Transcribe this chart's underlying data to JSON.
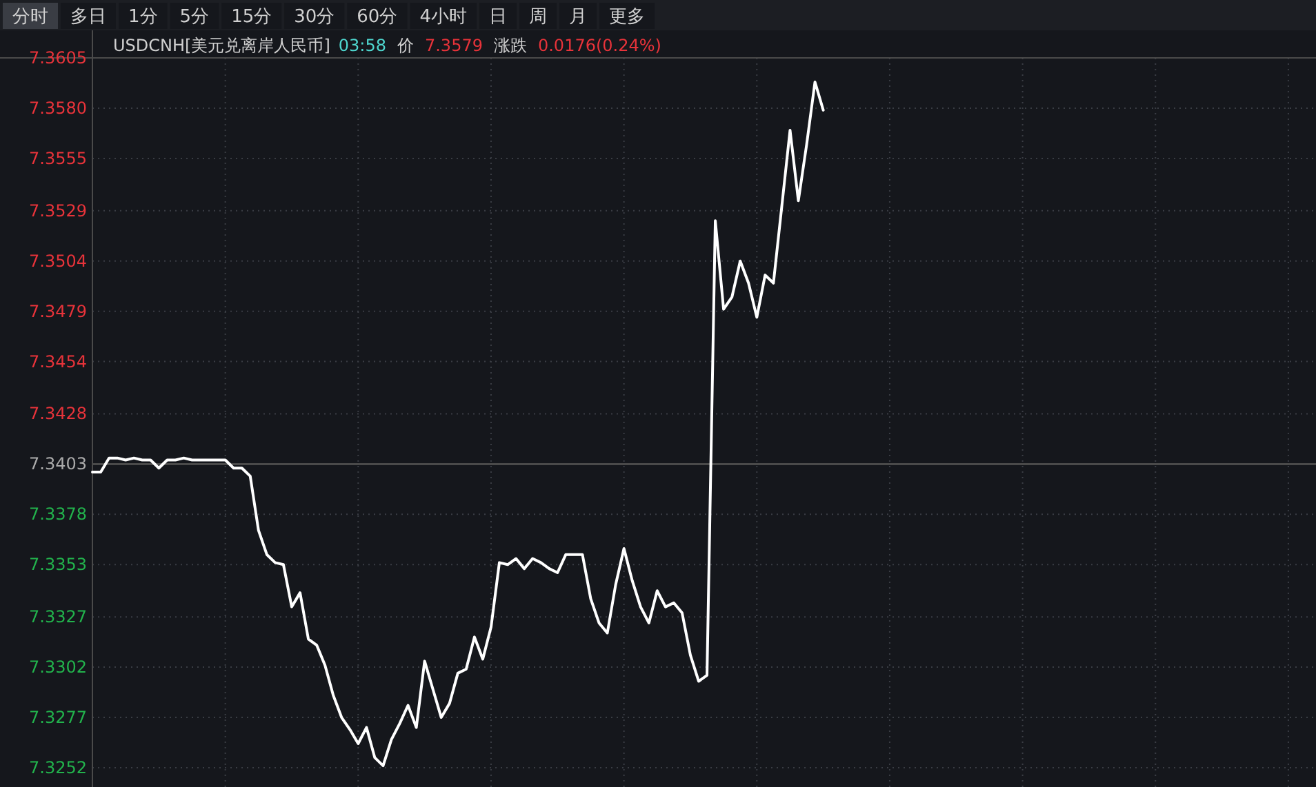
{
  "chart_data": {
    "type": "line",
    "title": "USDCNH[美元兑离岸人民币]",
    "annotations": [
      "03:58",
      "价",
      "7.3579",
      "涨跌",
      "0.0176(0.24%)",
      "分时",
      "多日",
      "1分",
      "5分",
      "15分",
      "30分",
      "60分",
      "4小时",
      "日",
      "周",
      "月",
      "更多"
    ],
    "categories": [
      null,
      null,
      null,
      null,
      null,
      null,
      null,
      null,
      null,
      null,
      null,
      null,
      null,
      null,
      null,
      null,
      null,
      null,
      null,
      null,
      null,
      null,
      null,
      null,
      null,
      null,
      null,
      null,
      null,
      null,
      null,
      null,
      null,
      null,
      null,
      null,
      null,
      null,
      null,
      null,
      null,
      null,
      null,
      null,
      null,
      null,
      null,
      null,
      null,
      null,
      null,
      null,
      null,
      null,
      null,
      null,
      null,
      null,
      null,
      null,
      null,
      null,
      null,
      null,
      null,
      null,
      null,
      null,
      null,
      null,
      null,
      null,
      null,
      null,
      null,
      null,
      null,
      null,
      null,
      null,
      null,
      null,
      null,
      null,
      null,
      null,
      null,
      null,
      null,
      null,
      null,
      null,
      null,
      null,
      null,
      null,
      null,
      null,
      null,
      null,
      null,
      null,
      null,
      null,
      null,
      null,
      null,
      null,
      null,
      null,
      null,
      null,
      null,
      null,
      null,
      null,
      null,
      null,
      null,
      null,
      null,
      null,
      null,
      null,
      null,
      null,
      null,
      null,
      null,
      null,
      null,
      null,
      null,
      null,
      null,
      null,
      null,
      null,
      null,
      null,
      null,
      null,
      null,
      null,
      null,
      null,
      null
    ],
    "series": [
      {
        "color": "#ffffff",
        "values": [
          7.3399,
          7.3399,
          7.3406,
          7.3406,
          7.3405,
          7.3406,
          7.3405,
          7.3405,
          7.3401,
          7.3405,
          7.3405,
          7.3406,
          7.3405,
          7.3405,
          7.3405,
          7.3405,
          7.3405,
          7.3401,
          7.3401,
          7.3397,
          7.337,
          7.3358,
          7.3354,
          7.3353,
          7.3332,
          7.3339,
          7.3316,
          7.3313,
          7.3303,
          7.3288,
          7.3277,
          7.3271,
          7.3264,
          7.3272,
          7.3257,
          7.3253,
          7.3266,
          7.3274,
          7.3283,
          7.3272,
          7.3305,
          7.3291,
          7.3277,
          7.3284,
          7.3299,
          7.3301,
          7.3317,
          7.3306,
          7.3322,
          7.3354,
          7.3353,
          7.3356,
          7.3351,
          7.3356,
          7.3354,
          7.3351,
          7.3349,
          7.3358,
          7.3358,
          7.3358,
          7.3336,
          7.3324,
          7.3319,
          7.3343,
          7.3361,
          7.3345,
          7.3332,
          7.3324,
          7.334,
          7.3332,
          7.3334,
          7.3329,
          7.3308,
          7.3295,
          7.3298,
          7.3524,
          7.348,
          7.3486,
          7.3504,
          7.3493,
          7.3476,
          7.3497,
          7.3493,
          7.3531,
          7.3569,
          7.3534,
          7.3562,
          7.3593,
          7.3579,
          null,
          null,
          null,
          null,
          null,
          null,
          null,
          null,
          null,
          null,
          null,
          null,
          null,
          null,
          null,
          null,
          null,
          null,
          null,
          null,
          null,
          null,
          null,
          null,
          null,
          null,
          null,
          null,
          null,
          null,
          null,
          null,
          null,
          null,
          null,
          null,
          null,
          null,
          null,
          null,
          null,
          null,
          null,
          null,
          null,
          null,
          null,
          null,
          null,
          null,
          null,
          null,
          null,
          null,
          null,
          null,
          null,
          null
        ]
      }
    ],
    "ylim": [
      7.3252,
      7.3605
    ],
    "yticks": [
      7.3605,
      {
        "value": 7.358,
        "label": "7.3580"
      },
      7.3555,
      7.3529,
      7.3504,
      7.3479,
      7.3454,
      7.3428,
      7.3403,
      7.3378,
      7.3353,
      7.3327,
      7.3302,
      7.3277,
      7.3252
    ],
    "ref_lines": [
      {
        "axis": "y",
        "value": 7.3403,
        "color": "#4a4a4a"
      }
    ],
    "grid": true,
    "tick_labels": "y"
  }
}
